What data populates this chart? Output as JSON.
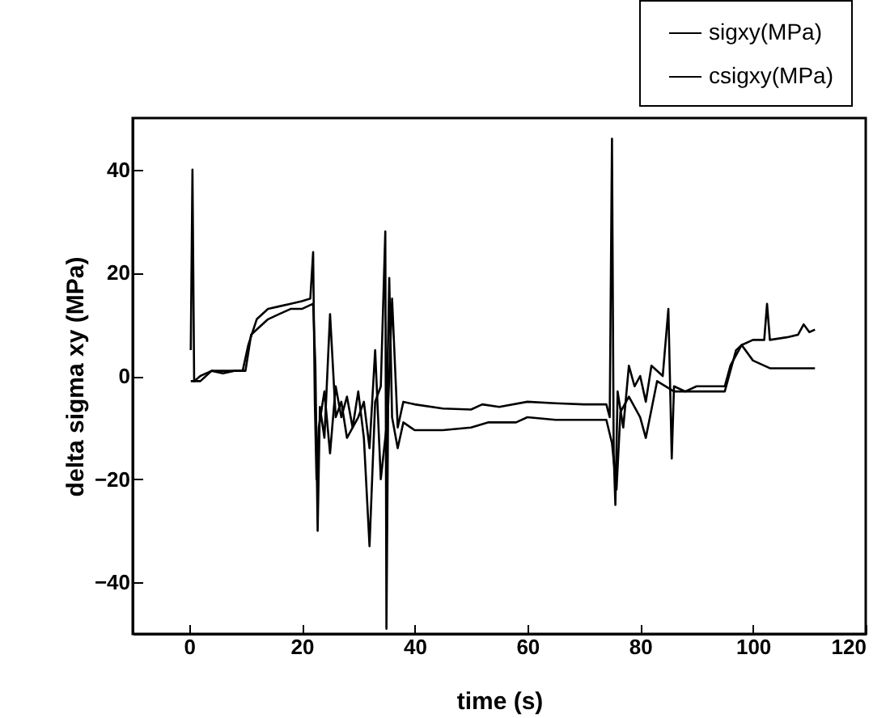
{
  "chart_data": {
    "type": "line",
    "xlabel": "time (s)",
    "ylabel": "delta sigma xy (MPa)",
    "xlim": [
      -10,
      120
    ],
    "xticks": [
      0,
      20,
      40,
      60,
      80,
      100,
      120
    ],
    "ylim": [
      -50,
      50
    ],
    "yticks": [
      -40,
      -20,
      0,
      20,
      40
    ],
    "legend": "top right",
    "series": [
      {
        "name": "sigxy(MPa)",
        "color": "#000000",
        "x": [
          0.3,
          0.6,
          0.9,
          2,
          4,
          6,
          8,
          9.5,
          10.5,
          12,
          14,
          16,
          18,
          20,
          21.5,
          22,
          22.3,
          22.6,
          23,
          24,
          25,
          26,
          27,
          28,
          29,
          30,
          31,
          32,
          33,
          34,
          34.8,
          35,
          35.3,
          36,
          37,
          38,
          40,
          45,
          50,
          52,
          55,
          60,
          65,
          70,
          74,
          74.6,
          75,
          75.3,
          75.6,
          76,
          77,
          78,
          79,
          80,
          81,
          82,
          84,
          85,
          85.6,
          86,
          88,
          90,
          95,
          96,
          97,
          98,
          100,
          102,
          102.5,
          103,
          106,
          108,
          109,
          110,
          111
        ],
        "values": [
          5,
          40,
          -1,
          0,
          1,
          0.5,
          1,
          1,
          6,
          11,
          13,
          13.5,
          14,
          14.5,
          15,
          24,
          -5,
          -20,
          -10,
          -3,
          -15,
          -2,
          -8,
          -4,
          -10,
          -3,
          -12,
          -33,
          -5,
          -2,
          28,
          -49,
          -6,
          15,
          -10,
          -5,
          -5.5,
          -6.3,
          -6.5,
          -5.5,
          -6,
          -5,
          -5.3,
          -5.5,
          -5.5,
          -8,
          46,
          -15,
          -25,
          -3,
          -10,
          2,
          -2,
          0,
          -5,
          2,
          0,
          13,
          -16,
          -2,
          -3,
          -2,
          -2,
          2,
          4,
          6,
          7,
          7,
          14,
          7,
          7.5,
          8,
          10,
          8.5,
          9
        ]
      },
      {
        "name": "csigxy(MPa)",
        "color": "#000000",
        "x": [
          0.3,
          2,
          4,
          8,
          10,
          11,
          12,
          14,
          16,
          18,
          20,
          22,
          22.4,
          22.8,
          23.2,
          24,
          25,
          26,
          27,
          28,
          30,
          31,
          32,
          33,
          34,
          35,
          35.5,
          36,
          37,
          38,
          40,
          45,
          50,
          53,
          58,
          60,
          65,
          70,
          74,
          75,
          75.8,
          76.5,
          78,
          80,
          81,
          83,
          86,
          90,
          95,
          97,
          98,
          100,
          103,
          106,
          111
        ],
        "values": [
          -1,
          -1,
          1,
          1,
          1,
          8,
          9,
          11,
          12,
          13,
          13,
          14,
          2,
          -30,
          -6,
          -12,
          12,
          -8,
          -5,
          -12,
          -8,
          -5,
          -14,
          5,
          -20,
          -10,
          19,
          -8,
          -14,
          -9,
          -10.5,
          -10.5,
          -10,
          -9,
          -9,
          -8,
          -8.5,
          -8.5,
          -8.5,
          -13,
          -22,
          -7,
          -4,
          -8,
          -12,
          -1,
          -3,
          -3,
          -3,
          5,
          6,
          3,
          1.5,
          1.5,
          1.5
        ]
      }
    ]
  }
}
